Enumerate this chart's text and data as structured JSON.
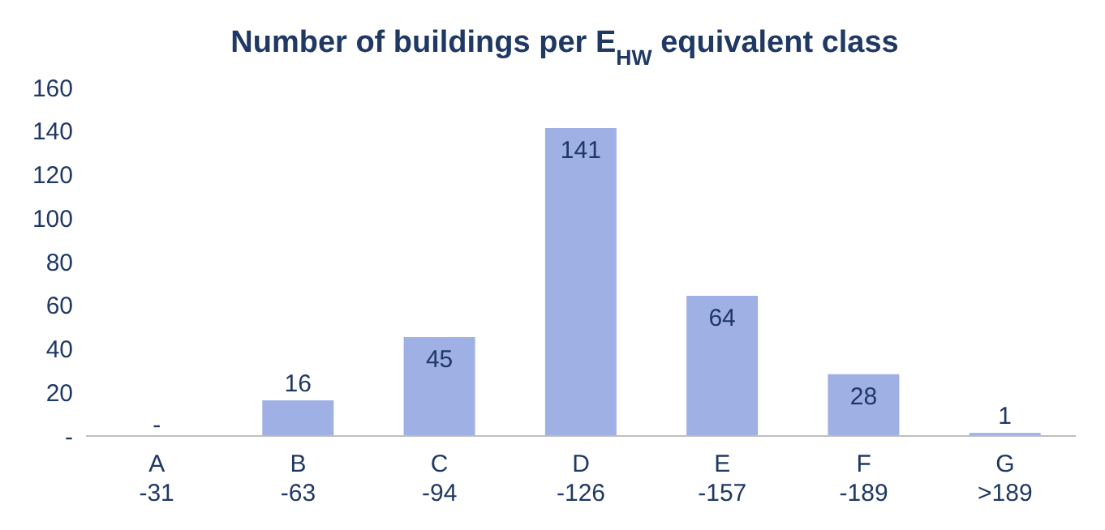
{
  "chart_data": {
    "type": "bar",
    "title": "Number of buildings per E$_{HW}$ equivalent class",
    "categories": [
      "A\n-31",
      "B\n-63",
      "C\n-94",
      "D\n-126",
      "E\n-157",
      "F\n-189",
      "G\n>189"
    ],
    "values": [
      0,
      16,
      45,
      141,
      64,
      28,
      1
    ],
    "value_labels": [
      "-",
      "16",
      "45",
      "141",
      "64",
      "28",
      "1"
    ],
    "color": "#9fb0e4",
    "ylim": [
      0,
      160
    ],
    "yticks": [
      {
        "value": 0,
        "label": "-"
      },
      20,
      40,
      60,
      80,
      100,
      120,
      140,
      160
    ],
    "grid": false
  }
}
